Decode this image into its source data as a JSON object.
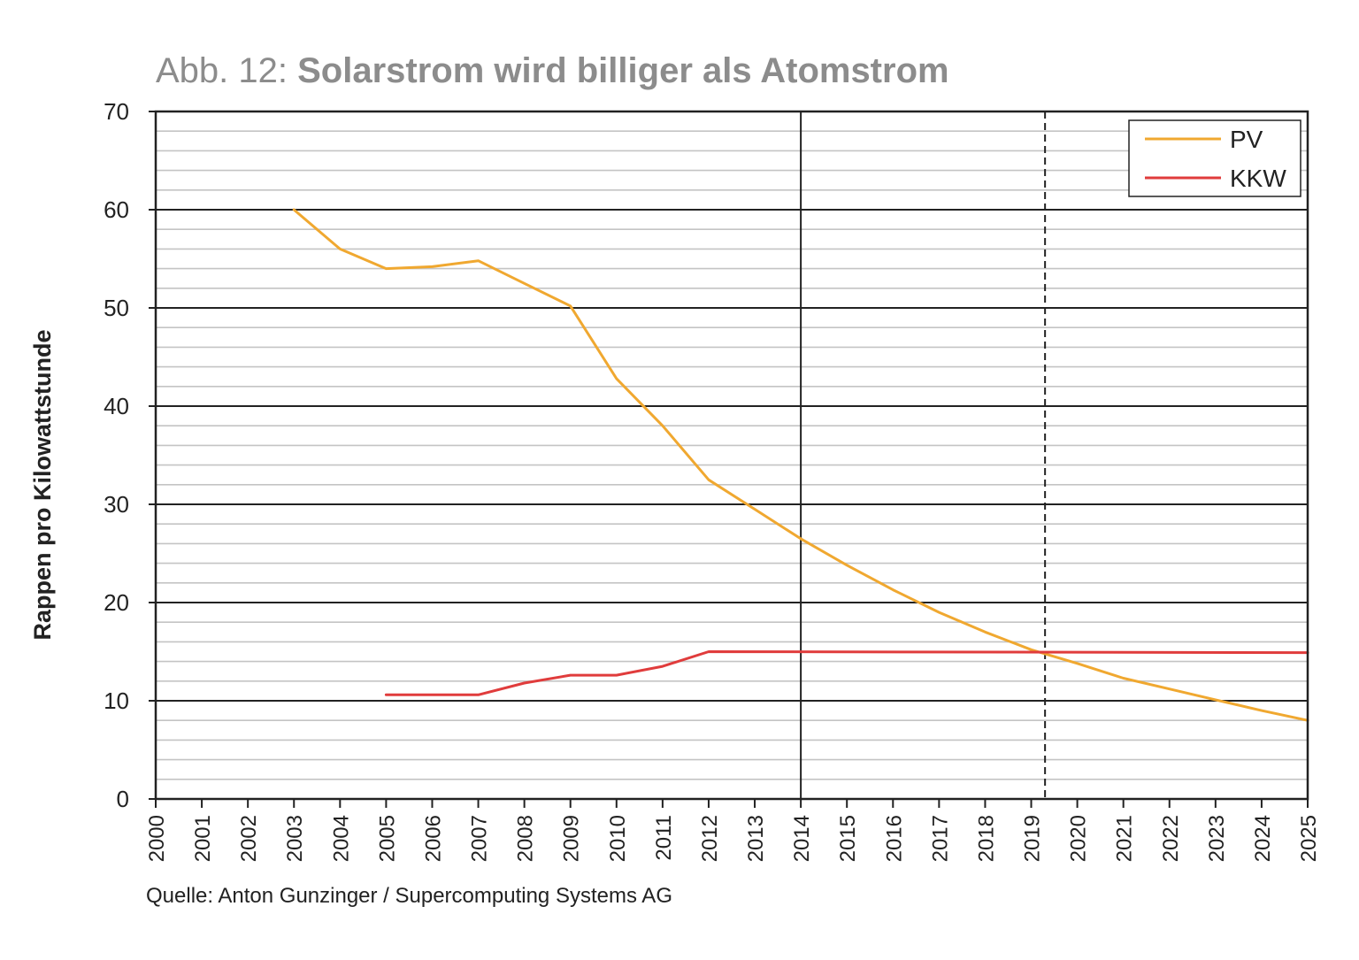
{
  "chart_data": {
    "type": "line",
    "title_prefix": "Abb. 12: ",
    "title": "Solarstrom wird billiger als Atomstrom",
    "ylabel": "Rappen pro Kilowattstunde",
    "xlabel": "",
    "source": "Quelle: Anton Gunzinger / Supercomputing Systems AG",
    "xlim": [
      2000,
      2025
    ],
    "ylim": [
      0,
      70
    ],
    "x_ticks": [
      2000,
      2001,
      2002,
      2003,
      2004,
      2005,
      2006,
      2007,
      2008,
      2009,
      2010,
      2011,
      2012,
      2013,
      2014,
      2015,
      2016,
      2017,
      2018,
      2019,
      2020,
      2021,
      2022,
      2023,
      2024,
      2025
    ],
    "y_ticks": [
      0,
      10,
      20,
      30,
      40,
      50,
      60,
      70
    ],
    "grid": {
      "major": true,
      "minor": true,
      "minor_step": 2
    },
    "vertical_lines": [
      {
        "x": 2014,
        "style": "solid"
      },
      {
        "x": 2019.3,
        "style": "dashed"
      }
    ],
    "legend": {
      "position": "top-right"
    },
    "series": [
      {
        "name": "PV",
        "color": "#f0a830",
        "points": [
          [
            2003,
            60
          ],
          [
            2004,
            56
          ],
          [
            2005,
            54
          ],
          [
            2006,
            54.2
          ],
          [
            2007,
            54.8
          ],
          [
            2008,
            52.5
          ],
          [
            2009,
            50.2
          ],
          [
            2010,
            42.8
          ],
          [
            2011,
            38
          ],
          [
            2012,
            32.5
          ],
          [
            2013,
            29.5
          ],
          [
            2014,
            26.5
          ],
          [
            2015,
            23.8
          ],
          [
            2016,
            21.3
          ],
          [
            2017,
            19
          ],
          [
            2018,
            17
          ],
          [
            2019,
            15.2
          ],
          [
            2020,
            13.8
          ],
          [
            2021,
            12.3
          ],
          [
            2022,
            11.2
          ],
          [
            2023,
            10.1
          ],
          [
            2024,
            9
          ],
          [
            2025,
            8
          ]
        ]
      },
      {
        "name": "KKW",
        "color": "#e03c3c",
        "points": [
          [
            2005,
            10.6
          ],
          [
            2006,
            10.6
          ],
          [
            2007,
            10.6
          ],
          [
            2008,
            11.8
          ],
          [
            2009,
            12.6
          ],
          [
            2010,
            12.6
          ],
          [
            2011,
            13.5
          ],
          [
            2012,
            15
          ],
          [
            2025,
            14.9
          ]
        ]
      }
    ]
  }
}
